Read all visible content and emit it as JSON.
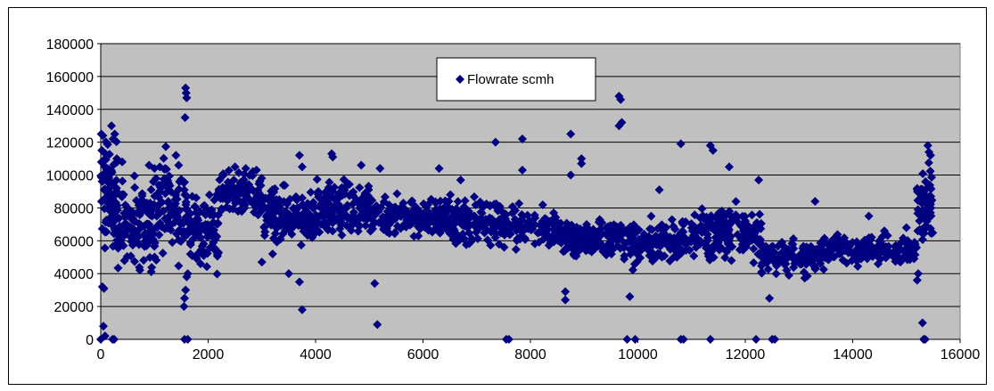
{
  "chart_data": {
    "type": "scatter",
    "title": "",
    "xlabel": "",
    "ylabel": "",
    "xlim": [
      0,
      16000
    ],
    "ylim": [
      0,
      180000
    ],
    "x_ticks": [
      "0",
      "2000",
      "4000",
      "6000",
      "8000",
      "10000",
      "12000",
      "14000",
      "16000"
    ],
    "y_ticks": [
      "0",
      "20000",
      "40000",
      "60000",
      "80000",
      "100000",
      "120000",
      "140000",
      "160000",
      "180000"
    ],
    "grid": "horizontal",
    "legend_position": "top-center",
    "plot_background": "#c0c0c0",
    "marker": "diamond",
    "series": [
      {
        "name": "Flowrate scmh",
        "color": "#000080",
        "segments": [
          {
            "x_range": [
              0,
              300
            ],
            "y_mean": 88000,
            "y_spread": 28000,
            "n": 90
          },
          {
            "x_range": [
              300,
              1000
            ],
            "y_mean": 70000,
            "y_spread": 25000,
            "n": 120
          },
          {
            "x_range": [
              1000,
              1600
            ],
            "y_mean": 80000,
            "y_spread": 28000,
            "n": 100
          },
          {
            "x_range": [
              1600,
              2200
            ],
            "y_mean": 68000,
            "y_spread": 22000,
            "n": 100
          },
          {
            "x_range": [
              2200,
              3000
            ],
            "y_mean": 88000,
            "y_spread": 12000,
            "n": 130
          },
          {
            "x_range": [
              3000,
              4000
            ],
            "y_mean": 75000,
            "y_spread": 15000,
            "n": 150
          },
          {
            "x_range": [
              4000,
              5000
            ],
            "y_mean": 80000,
            "y_spread": 14000,
            "n": 140
          },
          {
            "x_range": [
              5000,
              6500
            ],
            "y_mean": 75000,
            "y_spread": 12000,
            "n": 180
          },
          {
            "x_range": [
              6500,
              7500
            ],
            "y_mean": 72000,
            "y_spread": 14000,
            "n": 130
          },
          {
            "x_range": [
              7500,
              8500
            ],
            "y_mean": 68000,
            "y_spread": 10000,
            "n": 110
          },
          {
            "x_range": [
              8500,
              9700
            ],
            "y_mean": 62000,
            "y_spread": 9000,
            "n": 200
          },
          {
            "x_range": [
              9700,
              10800
            ],
            "y_mean": 58000,
            "y_spread": 12000,
            "n": 140
          },
          {
            "x_range": [
              10800,
              12300
            ],
            "y_mean": 64000,
            "y_spread": 14000,
            "n": 200
          },
          {
            "x_range": [
              12300,
              13500
            ],
            "y_mean": 50000,
            "y_spread": 10000,
            "n": 120
          },
          {
            "x_range": [
              13500,
              15200
            ],
            "y_mean": 55000,
            "y_spread": 8000,
            "n": 170
          },
          {
            "x_range": [
              15200,
              15500
            ],
            "y_mean": 82000,
            "y_spread": 20000,
            "n": 70
          }
        ],
        "extra_points": [
          [
            0,
            0
          ],
          [
            50,
            8000
          ],
          [
            80,
            2000
          ],
          [
            30,
            32000
          ],
          [
            60,
            31000
          ],
          [
            10,
            125000
          ],
          [
            40,
            124000
          ],
          [
            20,
            115000
          ],
          [
            200,
            130000
          ],
          [
            230,
            122000
          ],
          [
            260,
            125000
          ],
          [
            220,
            0
          ],
          [
            250,
            0
          ],
          [
            300,
            110000
          ],
          [
            400,
            108000
          ],
          [
            900,
            106000
          ],
          [
            1000,
            104000
          ],
          [
            1100,
            105000
          ],
          [
            1200,
            104000
          ],
          [
            1400,
            112000
          ],
          [
            1450,
            106000
          ],
          [
            1580,
            153000
          ],
          [
            1590,
            150000
          ],
          [
            1600,
            147000
          ],
          [
            1570,
            135000
          ],
          [
            1560,
            0
          ],
          [
            1620,
            0
          ],
          [
            1550,
            20000
          ],
          [
            1560,
            25000
          ],
          [
            1580,
            30000
          ],
          [
            1600,
            38000
          ],
          [
            1620,
            40000
          ],
          [
            2500,
            105000
          ],
          [
            2700,
            104000
          ],
          [
            2900,
            103000
          ],
          [
            3000,
            47000
          ],
          [
            3200,
            52000
          ],
          [
            3500,
            40000
          ],
          [
            3700,
            35000
          ],
          [
            3750,
            18000
          ],
          [
            3700,
            112000
          ],
          [
            3750,
            105000
          ],
          [
            4300,
            113000
          ],
          [
            4320,
            111000
          ],
          [
            4850,
            106000
          ],
          [
            5200,
            104000
          ],
          [
            5150,
            9000
          ],
          [
            5100,
            34000
          ],
          [
            6300,
            104000
          ],
          [
            6700,
            97000
          ],
          [
            7350,
            120000
          ],
          [
            7550,
            0
          ],
          [
            7600,
            0
          ],
          [
            7850,
            122000
          ],
          [
            7850,
            103000
          ],
          [
            8650,
            24000
          ],
          [
            8650,
            29000
          ],
          [
            8750,
            125000
          ],
          [
            8750,
            100000
          ],
          [
            8950,
            110000
          ],
          [
            8950,
            107000
          ],
          [
            9650,
            148000
          ],
          [
            9680,
            146000
          ],
          [
            9700,
            132000
          ],
          [
            9650,
            130000
          ],
          [
            9800,
            0
          ],
          [
            9850,
            26000
          ],
          [
            9950,
            0
          ],
          [
            10400,
            91000
          ],
          [
            10800,
            119000
          ],
          [
            10850,
            0
          ],
          [
            10800,
            0
          ],
          [
            11350,
            0
          ],
          [
            11400,
            115000
          ],
          [
            11350,
            118000
          ],
          [
            11700,
            105000
          ],
          [
            12200,
            0
          ],
          [
            12250,
            97000
          ],
          [
            12450,
            25000
          ],
          [
            12500,
            0
          ],
          [
            12550,
            0
          ],
          [
            13300,
            84000
          ],
          [
            14300,
            75000
          ],
          [
            15000,
            68000
          ],
          [
            15200,
            36000
          ],
          [
            15220,
            40000
          ],
          [
            15280,
            84000
          ],
          [
            15300,
            10000
          ],
          [
            15320,
            0
          ],
          [
            15350,
            0
          ],
          [
            15400,
            118000
          ],
          [
            15420,
            114000
          ],
          [
            15450,
            112000
          ]
        ]
      }
    ]
  }
}
